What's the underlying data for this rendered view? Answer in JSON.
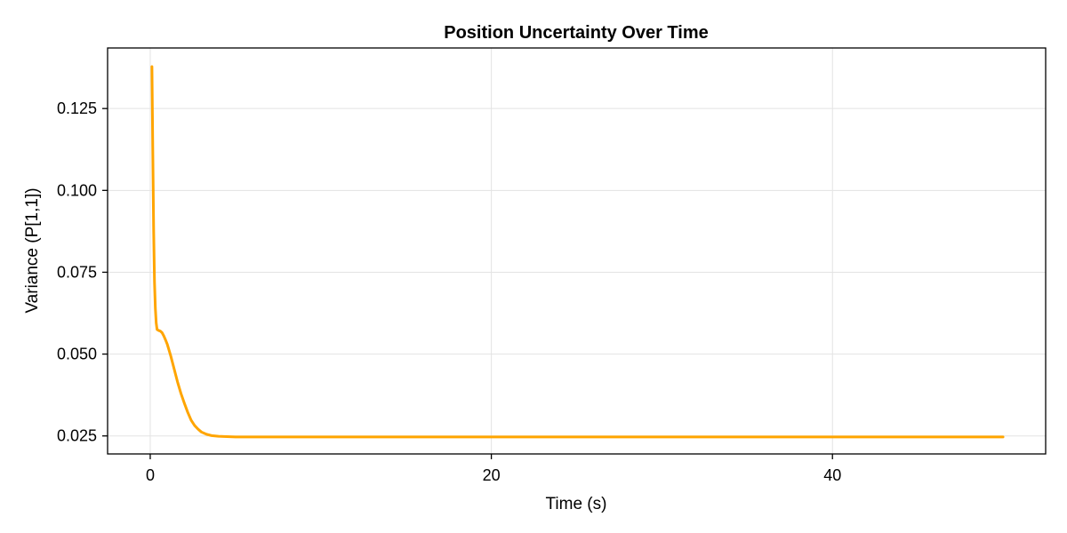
{
  "chart_data": {
    "type": "line",
    "title": "Position Uncertainty Over Time",
    "xlabel": "Time (s)",
    "ylabel": "Variance (P[1,1])",
    "xlim": [
      -2.5,
      52.5
    ],
    "ylim": [
      0.0195,
      0.1435
    ],
    "xticks": [
      0,
      20,
      40
    ],
    "xtick_labels": [
      "0",
      "20",
      "40"
    ],
    "yticks": [
      0.025,
      0.05,
      0.075,
      0.1,
      0.125
    ],
    "ytick_labels": [
      "0.025",
      "0.050",
      "0.075",
      "0.100",
      "0.125"
    ],
    "grid": true,
    "legend": false,
    "series": [
      {
        "color": "#ffa500",
        "x": [
          0.1,
          0.15,
          0.2,
          0.25,
          0.3,
          0.35,
          0.4,
          0.5,
          0.6,
          0.7,
          0.8,
          0.9,
          1.0,
          1.2,
          1.4,
          1.6,
          1.8,
          2.0,
          2.2,
          2.4,
          2.6,
          2.8,
          3.0,
          3.3,
          3.6,
          4.0,
          4.5,
          5.0,
          6.0,
          8.0,
          10.0,
          15.0,
          20.0,
          25.0,
          30.0,
          35.0,
          40.0,
          45.0,
          50.0
        ],
        "y": [
          0.1378,
          0.112,
          0.088,
          0.072,
          0.064,
          0.0595,
          0.0575,
          0.0572,
          0.057,
          0.0565,
          0.0555,
          0.0543,
          0.053,
          0.0495,
          0.0455,
          0.0415,
          0.038,
          0.035,
          0.0322,
          0.0298,
          0.0282,
          0.0271,
          0.0262,
          0.0255,
          0.0251,
          0.0249,
          0.0248,
          0.0247,
          0.0247,
          0.0247,
          0.0247,
          0.0247,
          0.0247,
          0.0247,
          0.0247,
          0.0247,
          0.0247,
          0.0247,
          0.0247
        ]
      }
    ]
  }
}
